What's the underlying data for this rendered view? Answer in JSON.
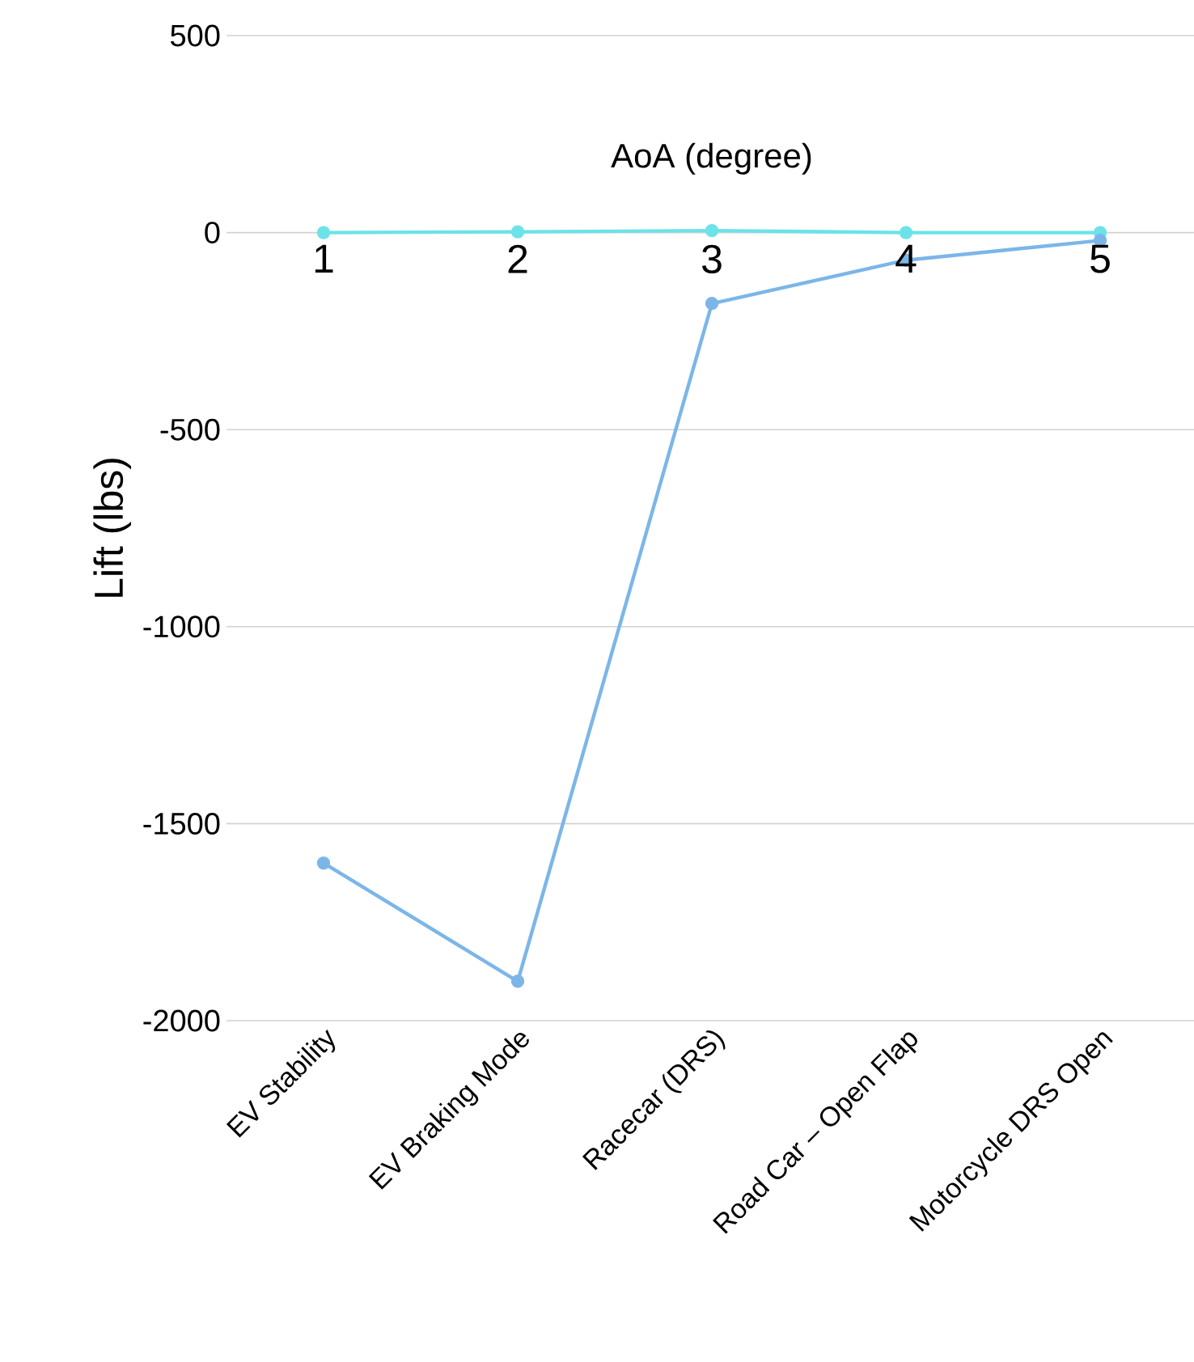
{
  "chart_data": {
    "type": "line",
    "categories": [
      "EV Stability",
      "EV Braking Mode",
      "Racecar (DRS)",
      "Road Car – Open Flap",
      "Motorcycle DRS Open"
    ],
    "series": [
      {
        "color": "#6be3e8",
        "values": [
          0,
          2,
          5,
          0,
          0
        ]
      },
      {
        "color": "#7cb6e8",
        "values": [
          -1600,
          -1900,
          -180,
          -70,
          -20
        ]
      }
    ],
    "ylabel": "Lift (lbs)",
    "ylim": [
      -2000,
      500
    ],
    "yticks": [
      -2000,
      -1500,
      -1000,
      -500,
      0,
      500
    ],
    "x2label": "AoA (degree)",
    "x2lim": [
      0.5,
      5.5
    ],
    "x2ticks": [
      1,
      2,
      3,
      4,
      5
    ],
    "grid": "y",
    "marker": "circle"
  }
}
